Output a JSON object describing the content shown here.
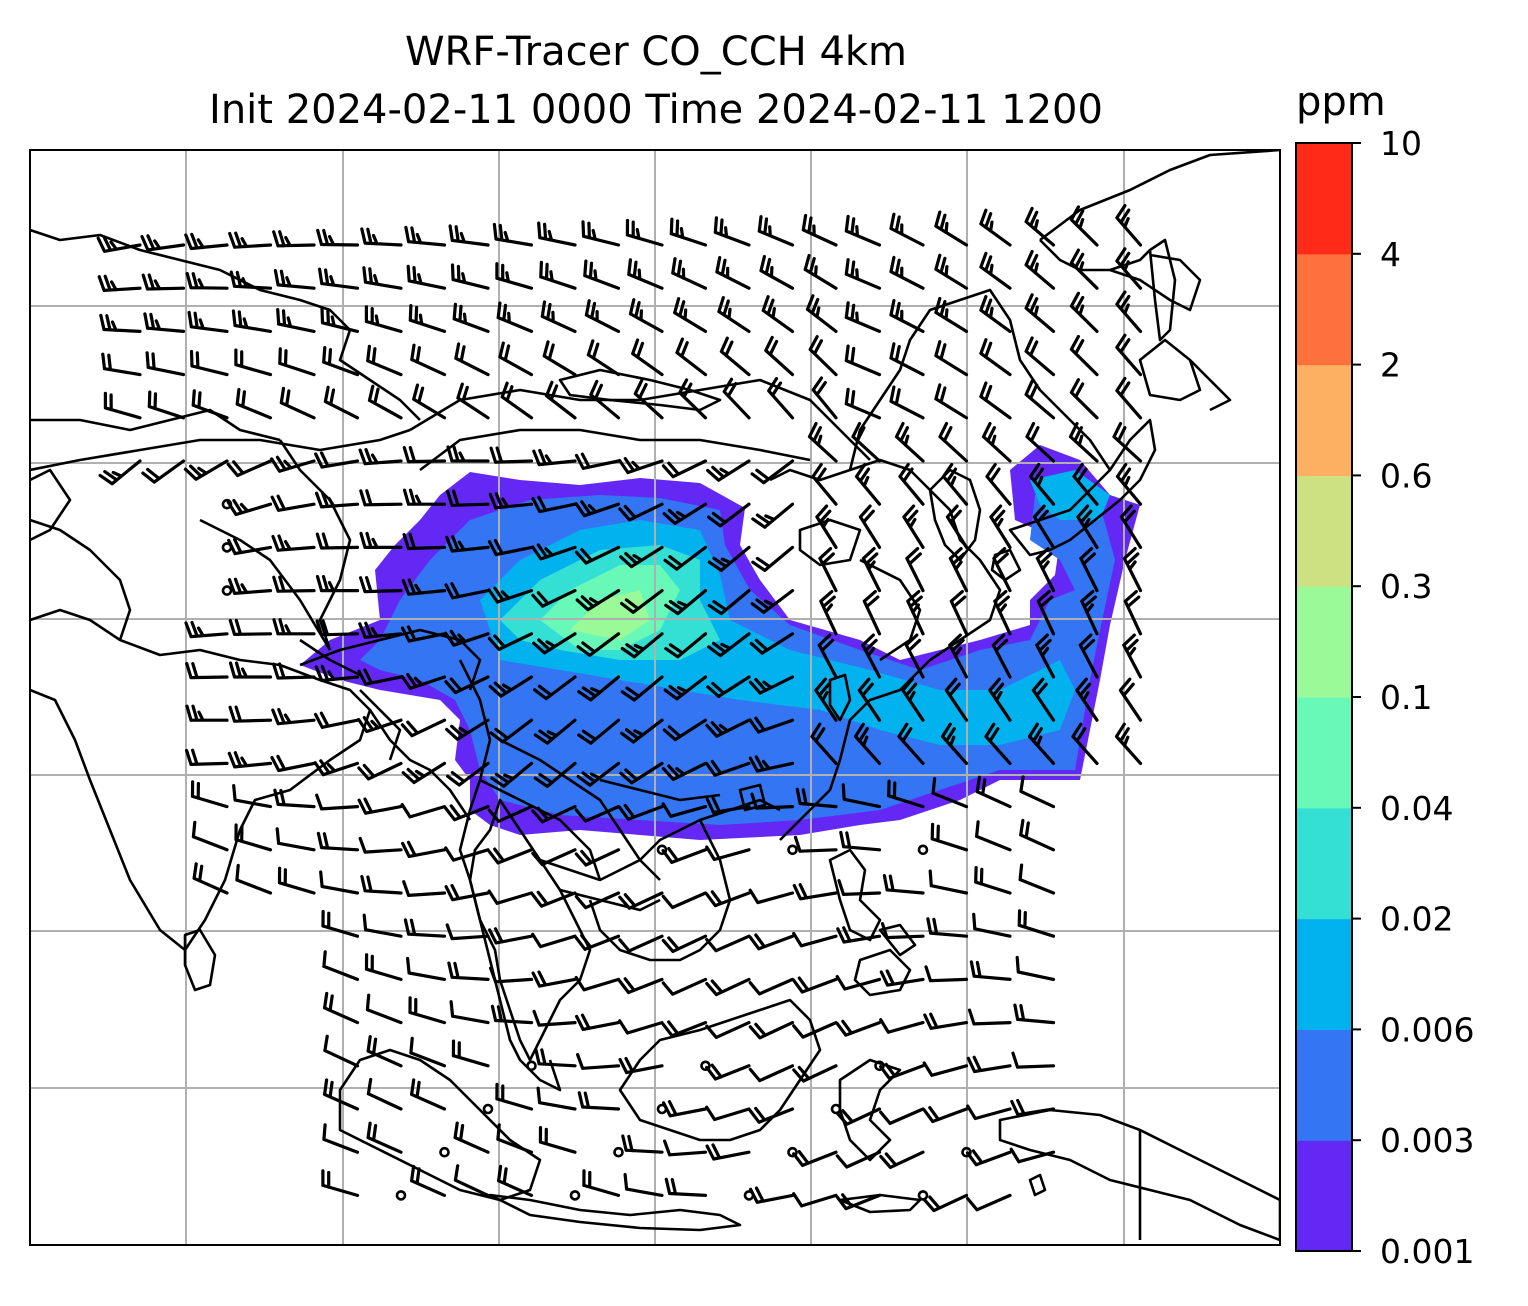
{
  "title": {
    "line1": "WRF-Tracer CO_CCH 4km",
    "line2": "Init 2024-02-11 0000 Time 2024-02-11 1200"
  },
  "colorbar": {
    "unit": "ppm",
    "levels": [
      "0.001",
      "0.003",
      "0.006",
      "0.02",
      "0.04",
      "0.1",
      "0.3",
      "0.6",
      "2",
      "4",
      "10"
    ],
    "colors": [
      "#6428f5",
      "#3375f2",
      "#02b2ee",
      "#33e0d3",
      "#68f9b8",
      "#99fa97",
      "#cde183",
      "#fdb061",
      "#ff713c",
      "#ff2b18"
    ]
  },
  "map": {
    "gridlines": true,
    "coastline_color": "#000000",
    "barb_color": "#000000"
  }
}
